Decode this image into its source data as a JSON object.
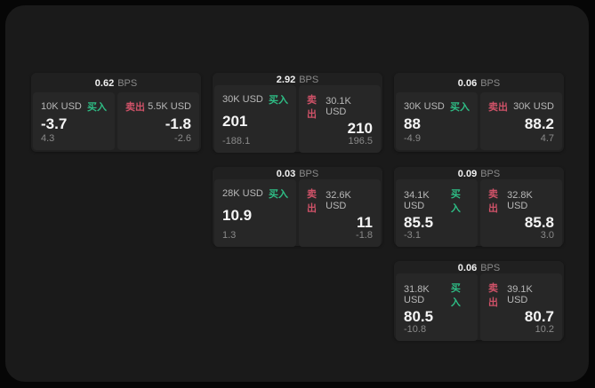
{
  "labels": {
    "buy": "买入",
    "sell": "卖出",
    "bps_suffix": "BPS"
  },
  "colors": {
    "buy_green": "#2ebd85",
    "sell_red": "#cf5268",
    "page_bg": "#060606",
    "panel_bg": "#1a1a1a",
    "card_bg": "#202020",
    "side_bg": "#272727"
  },
  "cards": [
    {
      "bps": "0.62",
      "buy": {
        "size": "10K USD",
        "price": "-3.7",
        "delta": "4.3"
      },
      "sell": {
        "size": "5.5K USD",
        "price": "-1.8",
        "delta": "-2.6"
      }
    },
    {
      "bps": "2.92",
      "buy": {
        "size": "30K USD",
        "price": "201",
        "delta": "-188.1"
      },
      "sell": {
        "size": "30.1K USD",
        "price": "210",
        "delta": "196.5"
      }
    },
    {
      "bps": "0.06",
      "buy": {
        "size": "30K USD",
        "price": "88",
        "delta": "-4.9"
      },
      "sell": {
        "size": "30K USD",
        "price": "88.2",
        "delta": "4.7"
      }
    },
    {
      "bps": "0.03",
      "buy": {
        "size": "28K USD",
        "price": "10.9",
        "delta": "1.3"
      },
      "sell": {
        "size": "32.6K USD",
        "price": "11",
        "delta": "-1.8"
      }
    },
    {
      "bps": "0.09",
      "buy": {
        "size": "34.1K USD",
        "price": "85.5",
        "delta": "-3.1"
      },
      "sell": {
        "size": "32.8K USD",
        "price": "85.8",
        "delta": "3.0"
      }
    },
    {
      "bps": "0.06",
      "buy": {
        "size": "31.8K USD",
        "price": "80.5",
        "delta": "-10.8"
      },
      "sell": {
        "size": "39.1K USD",
        "price": "80.7",
        "delta": "10.2"
      }
    }
  ]
}
